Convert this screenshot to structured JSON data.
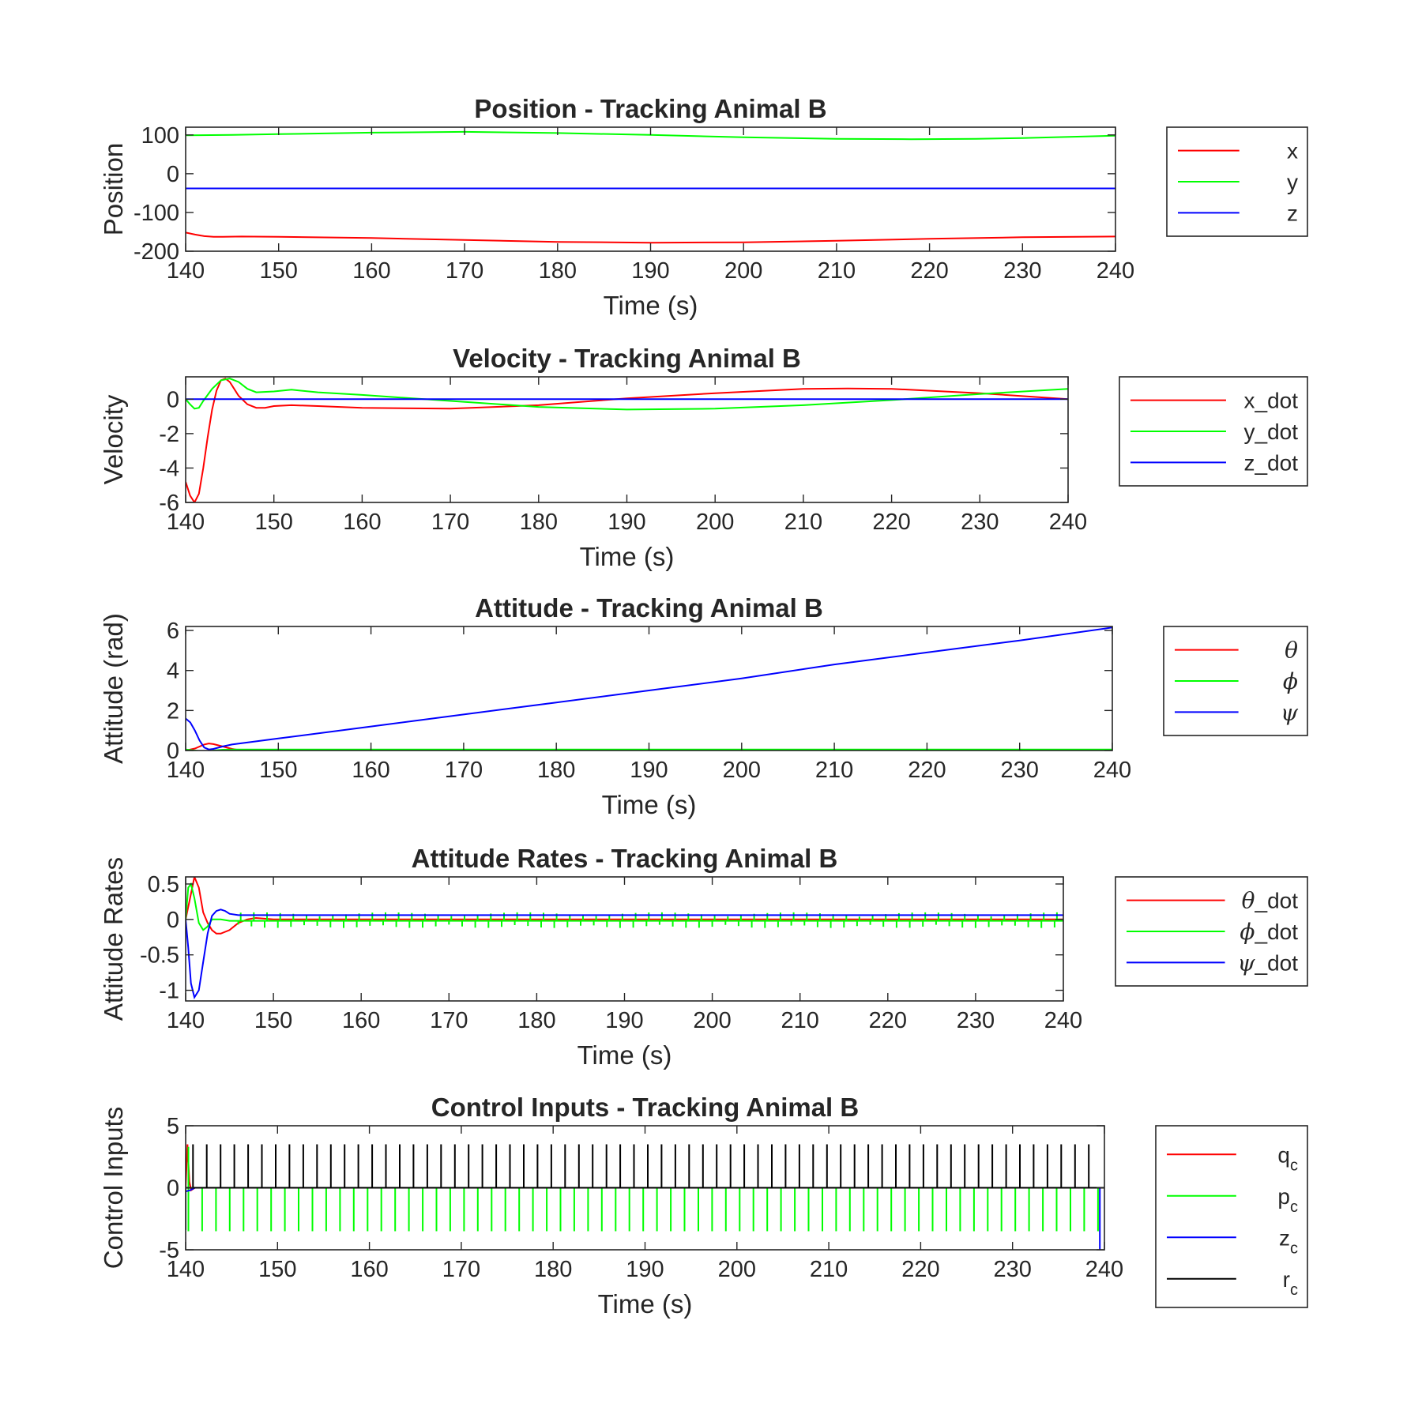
{
  "figure_background": "#ffffff",
  "colors": {
    "red": "#ff0000",
    "green": "#00ff00",
    "blue": "#0000ff",
    "black": "#000000"
  },
  "chart_data": [
    {
      "id": "position",
      "type": "line",
      "title": "Position - Tracking Animal B",
      "xlabel": "Time (s)",
      "ylabel": "Position",
      "xlim": [
        140,
        240
      ],
      "ylim": [
        -200,
        120
      ],
      "xticks": [
        140,
        150,
        160,
        170,
        180,
        190,
        200,
        210,
        220,
        230,
        240
      ],
      "yticks": [
        -200,
        -100,
        0,
        100
      ],
      "grid": false,
      "legend_position": "outside-right",
      "legend": [
        {
          "label": "x",
          "symbol": "",
          "sub": "",
          "color": "#ff0000"
        },
        {
          "label": "y",
          "symbol": "",
          "sub": "",
          "color": "#00ff00"
        },
        {
          "label": "z",
          "symbol": "",
          "sub": "",
          "color": "#0000ff"
        }
      ],
      "series": [
        {
          "name": "x",
          "color": "#ff0000",
          "kind": "line",
          "x": [
            140,
            141,
            142,
            143,
            144,
            146,
            150,
            160,
            170,
            180,
            190,
            200,
            210,
            220,
            230,
            240
          ],
          "y": [
            -152,
            -157,
            -161,
            -163,
            -163,
            -162,
            -163,
            -166,
            -171,
            -176,
            -178,
            -177,
            -173,
            -168,
            -164,
            -162
          ]
        },
        {
          "name": "y",
          "color": "#00ff00",
          "kind": "line",
          "x": [
            140,
            145,
            150,
            160,
            170,
            180,
            190,
            200,
            210,
            218,
            225,
            230,
            240
          ],
          "y": [
            99,
            100,
            102,
            106,
            108,
            105,
            100,
            94,
            90,
            89,
            90,
            92,
            98
          ]
        },
        {
          "name": "z",
          "color": "#0000ff",
          "kind": "line",
          "x": [
            140,
            240
          ],
          "y": [
            -38,
            -38
          ]
        }
      ]
    },
    {
      "id": "velocity",
      "type": "line",
      "title": "Velocity - Tracking Animal B",
      "xlabel": "Time (s)",
      "ylabel": "Velocity",
      "xlim": [
        140,
        240
      ],
      "ylim": [
        -6,
        1.3
      ],
      "xticks": [
        140,
        150,
        160,
        170,
        180,
        190,
        200,
        210,
        220,
        230,
        240
      ],
      "yticks": [
        -6,
        -4,
        -2,
        0
      ],
      "grid": false,
      "legend_position": "outside-right",
      "legend": [
        {
          "label": "x_dot",
          "symbol": "",
          "sub": "",
          "color": "#ff0000"
        },
        {
          "label": "y_dot",
          "symbol": "",
          "sub": "",
          "color": "#00ff00"
        },
        {
          "label": "z_dot",
          "symbol": "",
          "sub": "",
          "color": "#0000ff"
        }
      ],
      "series": [
        {
          "name": "x_dot",
          "color": "#ff0000",
          "kind": "line",
          "x": [
            140,
            140.5,
            141,
            141.5,
            142,
            142.5,
            143,
            143.5,
            144,
            144.5,
            145,
            145.5,
            146,
            147,
            148,
            149,
            150,
            152,
            155,
            160,
            170,
            180,
            190,
            200,
            210,
            215,
            220,
            230,
            240
          ],
          "y": [
            -4.8,
            -5.6,
            -6.0,
            -5.5,
            -4.0,
            -2.2,
            -0.6,
            0.5,
            1.1,
            1.2,
            1.0,
            0.6,
            0.2,
            -0.3,
            -0.5,
            -0.5,
            -0.4,
            -0.35,
            -0.4,
            -0.5,
            -0.55,
            -0.35,
            0.05,
            0.35,
            0.6,
            0.62,
            0.6,
            0.35,
            0.0
          ]
        },
        {
          "name": "y_dot",
          "color": "#00ff00",
          "kind": "line",
          "x": [
            140,
            140.5,
            141,
            141.5,
            142,
            143,
            144,
            145,
            146,
            147,
            148,
            150,
            152,
            155,
            160,
            170,
            180,
            190,
            200,
            210,
            220,
            230,
            240
          ],
          "y": [
            0.0,
            -0.3,
            -0.55,
            -0.5,
            -0.1,
            0.6,
            1.1,
            1.2,
            1.0,
            0.6,
            0.4,
            0.45,
            0.55,
            0.4,
            0.25,
            -0.1,
            -0.45,
            -0.6,
            -0.55,
            -0.35,
            -0.05,
            0.3,
            0.6
          ]
        },
        {
          "name": "z_dot",
          "color": "#0000ff",
          "kind": "line",
          "x": [
            140,
            240
          ],
          "y": [
            0,
            0
          ]
        }
      ]
    },
    {
      "id": "attitude",
      "type": "line",
      "title": "Attitude - Tracking Animal B",
      "xlabel": "Time (s)",
      "ylabel": "Attitude (rad)",
      "xlim": [
        140,
        240
      ],
      "ylim": [
        0,
        6.2
      ],
      "xticks": [
        140,
        150,
        160,
        170,
        180,
        190,
        200,
        210,
        220,
        230,
        240
      ],
      "yticks": [
        0,
        2,
        4,
        6
      ],
      "grid": false,
      "legend_position": "outside-right",
      "legend": [
        {
          "label": "",
          "symbol": "θ",
          "sub": "",
          "color": "#ff0000"
        },
        {
          "label": "",
          "symbol": "ϕ",
          "sub": "",
          "color": "#00ff00"
        },
        {
          "label": "",
          "symbol": "ψ",
          "sub": "",
          "color": "#0000ff"
        }
      ],
      "series": [
        {
          "name": "θ",
          "color": "#ff0000",
          "kind": "line",
          "x": [
            140,
            141,
            142,
            142.5,
            143,
            144,
            145,
            146,
            147,
            148,
            150,
            160,
            240
          ],
          "y": [
            0.0,
            0.1,
            0.3,
            0.35,
            0.32,
            0.2,
            0.08,
            0.0,
            -0.03,
            0.0,
            0.02,
            0.03,
            0.03
          ]
        },
        {
          "name": "ϕ",
          "color": "#00ff00",
          "kind": "line",
          "x": [
            140,
            141,
            142,
            143,
            144,
            145,
            150,
            240
          ],
          "y": [
            0.05,
            0.0,
            -0.05,
            0.0,
            0.04,
            0.05,
            0.05,
            0.05
          ]
        },
        {
          "name": "ψ",
          "color": "#0000ff",
          "kind": "line",
          "x": [
            140,
            140.5,
            141,
            141.5,
            142,
            142.5,
            143,
            144,
            145,
            150,
            160,
            170,
            180,
            190,
            200,
            210,
            220,
            230,
            240
          ],
          "y": [
            1.6,
            1.4,
            1.0,
            0.5,
            0.15,
            0.05,
            0.08,
            0.2,
            0.3,
            0.6,
            1.2,
            1.8,
            2.4,
            3.0,
            3.6,
            4.3,
            4.9,
            5.5,
            6.15
          ]
        }
      ]
    },
    {
      "id": "attitude-rates",
      "type": "line",
      "title": "Attitude Rates - Tracking Animal B",
      "xlabel": "Time (s)",
      "ylabel": "Attitude Rates",
      "xlim": [
        140,
        240
      ],
      "ylim": [
        -1.15,
        0.6
      ],
      "xticks": [
        140,
        150,
        160,
        170,
        180,
        190,
        200,
        210,
        220,
        230,
        240
      ],
      "yticks": [
        -1,
        -0.5,
        0,
        0.5
      ],
      "grid": false,
      "legend_position": "outside-right",
      "legend": [
        {
          "label": "_dot",
          "symbol": "θ",
          "sub": "",
          "color": "#ff0000"
        },
        {
          "label": "_dot",
          "symbol": "ϕ",
          "sub": "",
          "color": "#00ff00"
        },
        {
          "label": "_dot",
          "symbol": "ψ",
          "sub": "",
          "color": "#0000ff"
        }
      ],
      "series": [
        {
          "name": "θ_dot",
          "color": "#ff0000",
          "kind": "line",
          "x": [
            140,
            140.5,
            141,
            141.5,
            142,
            142.5,
            143,
            143.5,
            144,
            145,
            146,
            147,
            148,
            150,
            160,
            240
          ],
          "y": [
            0.0,
            0.3,
            0.6,
            0.45,
            0.1,
            -0.05,
            -0.15,
            -0.2,
            -0.2,
            -0.15,
            -0.05,
            0.0,
            0.02,
            0.0,
            0.0,
            0.0
          ]
        },
        {
          "name": "ϕ_dot",
          "color": "#00ff00",
          "kind": "spikes",
          "base": [
            [
              140,
              0.0
            ],
            [
              140.3,
              0.45
            ],
            [
              140.6,
              0.5
            ],
            [
              141,
              0.3
            ],
            [
              141.5,
              -0.05
            ],
            [
              142,
              -0.15
            ],
            [
              142.5,
              -0.1
            ],
            [
              143,
              0.0
            ],
            [
              144,
              0.0
            ],
            [
              145,
              -0.02
            ],
            [
              240,
              -0.02
            ]
          ],
          "spike_period": 1.5,
          "spike_down": -0.12,
          "spike_up": 0.1
        },
        {
          "name": "ψ_dot",
          "color": "#0000ff",
          "kind": "line",
          "x": [
            140,
            140.3,
            140.6,
            141,
            141.5,
            142,
            142.5,
            143,
            143.5,
            144,
            144.5,
            145,
            146,
            147,
            150,
            240
          ],
          "y": [
            0.0,
            -0.4,
            -0.9,
            -1.1,
            -1.0,
            -0.6,
            -0.2,
            0.05,
            0.12,
            0.14,
            0.12,
            0.08,
            0.06,
            0.06,
            0.06,
            0.06
          ]
        }
      ]
    },
    {
      "id": "control-inputs",
      "type": "line",
      "title": "Control Inputs - Tracking Animal B",
      "xlabel": "Time (s)",
      "ylabel": "Control Inputs",
      "xlim": [
        140,
        240
      ],
      "ylim": [
        -5,
        5
      ],
      "xticks": [
        140,
        150,
        160,
        170,
        180,
        190,
        200,
        210,
        220,
        230,
        240
      ],
      "yticks": [
        -5,
        0,
        5
      ],
      "grid": false,
      "legend_position": "outside-right",
      "legend": [
        {
          "label": "q",
          "symbol": "",
          "sub": "c",
          "color": "#ff0000"
        },
        {
          "label": "p",
          "symbol": "",
          "sub": "c",
          "color": "#00ff00"
        },
        {
          "label": "z",
          "symbol": "",
          "sub": "c",
          "color": "#0000ff"
        },
        {
          "label": "r",
          "symbol": "",
          "sub": "c",
          "color": "#000000"
        }
      ],
      "series": [
        {
          "name": "q_c",
          "color": "#ff0000",
          "kind": "line",
          "x": [
            140,
            140.2,
            140.4,
            140.6,
            141,
            240
          ],
          "y": [
            0.0,
            3.5,
            0.5,
            -0.2,
            0.0,
            0.0
          ]
        },
        {
          "name": "p_c",
          "color": "#00ff00",
          "kind": "pulses",
          "x_start": 140.3,
          "x_end": 239.3,
          "period": 1.5,
          "level": -3.5,
          "baseline": 0,
          "extra": [
            [
              140.3,
              3.3
            ]
          ]
        },
        {
          "name": "z_c",
          "color": "#0000ff",
          "kind": "line",
          "x": [
            140,
            140.5,
            141,
            142,
            143,
            239.5,
            239.5,
            239.6
          ],
          "y": [
            -0.3,
            -0.2,
            0.0,
            0.0,
            0.0,
            0.0,
            -5.0,
            -5.0
          ]
        },
        {
          "name": "r_c",
          "color": "#000000",
          "kind": "pulses",
          "x_start": 140.8,
          "x_end": 239.3,
          "period": 1.5,
          "level": 3.5,
          "baseline": 0,
          "extra": [
            [
              140.0,
              -3.4
            ]
          ]
        }
      ]
    }
  ]
}
